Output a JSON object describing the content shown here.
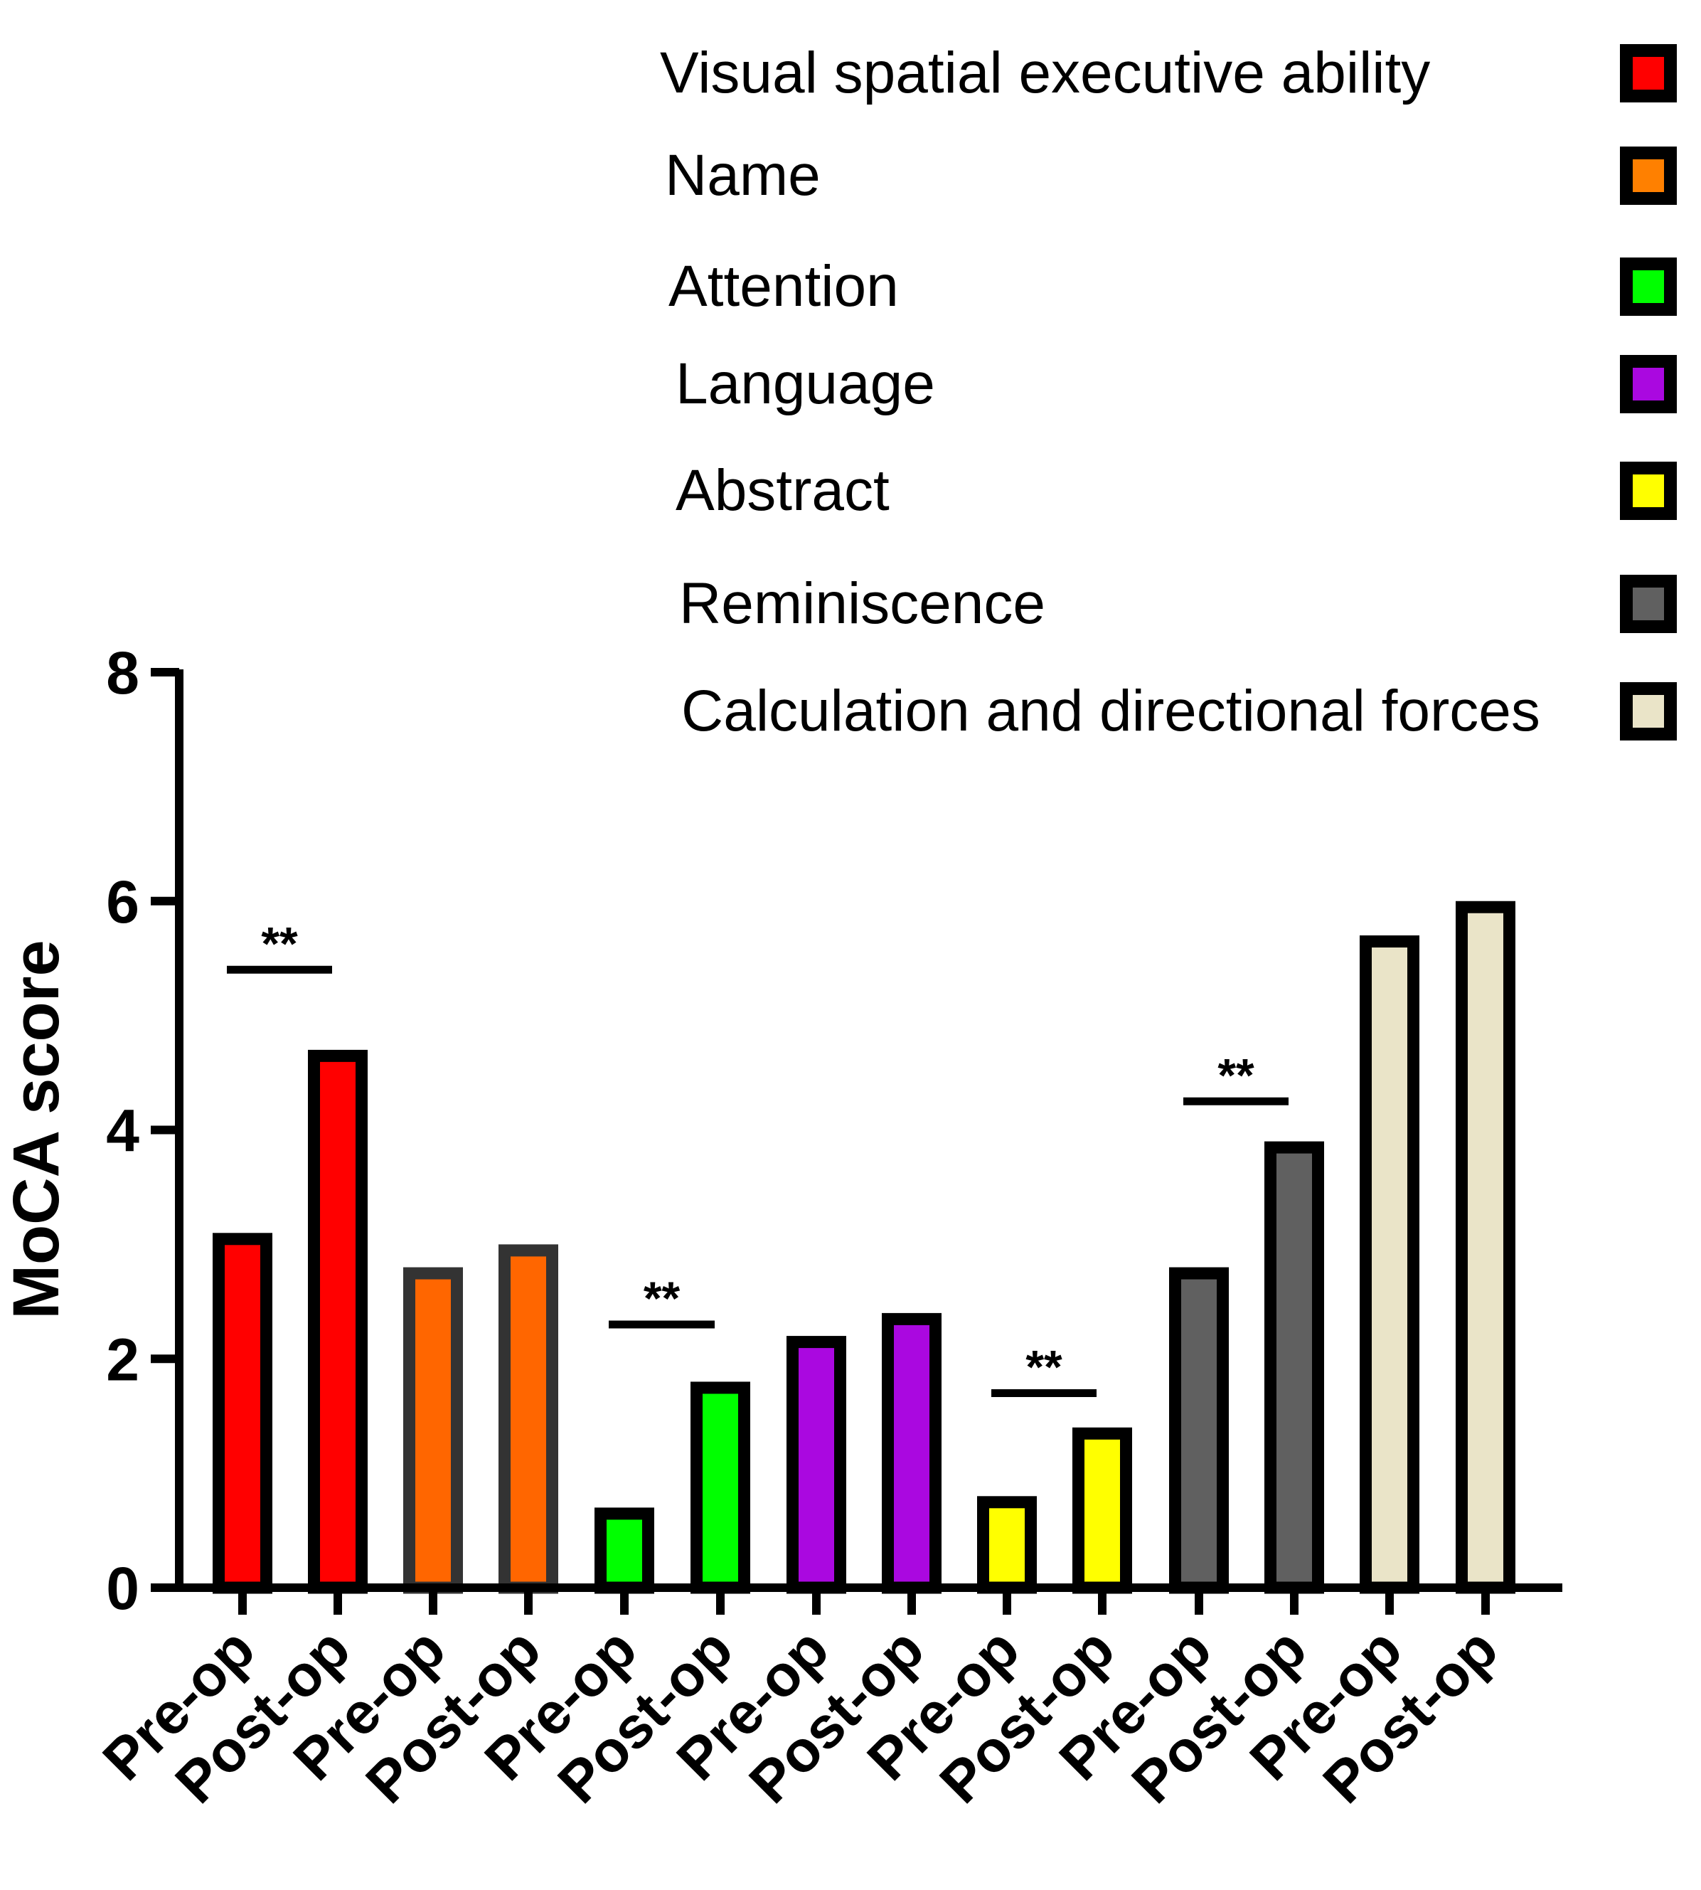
{
  "chart_data": {
    "type": "bar",
    "title": "",
    "xlabel": "",
    "ylabel": "MoCA score",
    "ylim": [
      0,
      8
    ],
    "yticks": [
      0,
      2,
      4,
      6,
      8
    ],
    "grid": false,
    "legend_position": "top-right",
    "categories": [
      "Pre-op",
      "Post-op",
      "Pre-op",
      "Post-op",
      "Pre-op",
      "Post-op",
      "Pre-op",
      "Post-op",
      "Pre-op",
      "Post-op",
      "Pre-op",
      "Post-op",
      "Pre-op",
      "Post-op"
    ],
    "series": [
      {
        "name": "Visual spatial executive ability",
        "color": "#ff0000",
        "border": "#000000",
        "values": [
          3.1,
          4.7
        ]
      },
      {
        "name": "Name",
        "color": "#ff6600",
        "border": "#333333",
        "values": [
          2.8,
          3.0
        ]
      },
      {
        "name": "Attention",
        "color": "#00ff00",
        "border": "#000000",
        "values": [
          0.7,
          1.8
        ]
      },
      {
        "name": "Language",
        "color": "#aa08e0",
        "border": "#000000",
        "values": [
          2.2,
          2.4
        ]
      },
      {
        "name": "Abstract",
        "color": "#ffff00",
        "border": "#000000",
        "values": [
          0.8,
          1.4
        ]
      },
      {
        "name": "Reminiscence",
        "color": "#606060",
        "border": "#000000",
        "values": [
          2.8,
          3.9
        ]
      },
      {
        "name": "Calculation and directional forces",
        "color": "#eae4c8",
        "border": "#000000",
        "values": [
          5.7,
          6.0
        ]
      }
    ],
    "annotations": [
      {
        "text": "**",
        "group": "Visual spatial executive ability",
        "y": 5.4
      },
      {
        "text": "**",
        "group": "Attention",
        "y": 2.3
      },
      {
        "text": "**",
        "group": "Abstract",
        "y": 1.7
      },
      {
        "text": "**",
        "group": "Reminiscence",
        "y": 4.25
      }
    ]
  },
  "legend": {
    "items": [
      {
        "label": "Visual spatial executive ability",
        "color": "#ff0000"
      },
      {
        "label": "Name",
        "color": "#ff8000"
      },
      {
        "label": "Attention",
        "color": "#00ff00"
      },
      {
        "label": "Language",
        "color": "#aa08e0"
      },
      {
        "label": "Abstract",
        "color": "#ffff00"
      },
      {
        "label": "Reminiscence",
        "color": "#606060"
      },
      {
        "label": "Calculation and directional forces",
        "color": "#eae4c8"
      }
    ]
  },
  "axis": {
    "ylabel": "MoCA score",
    "yticks": [
      "0",
      "2",
      "4",
      "6",
      "8"
    ]
  }
}
